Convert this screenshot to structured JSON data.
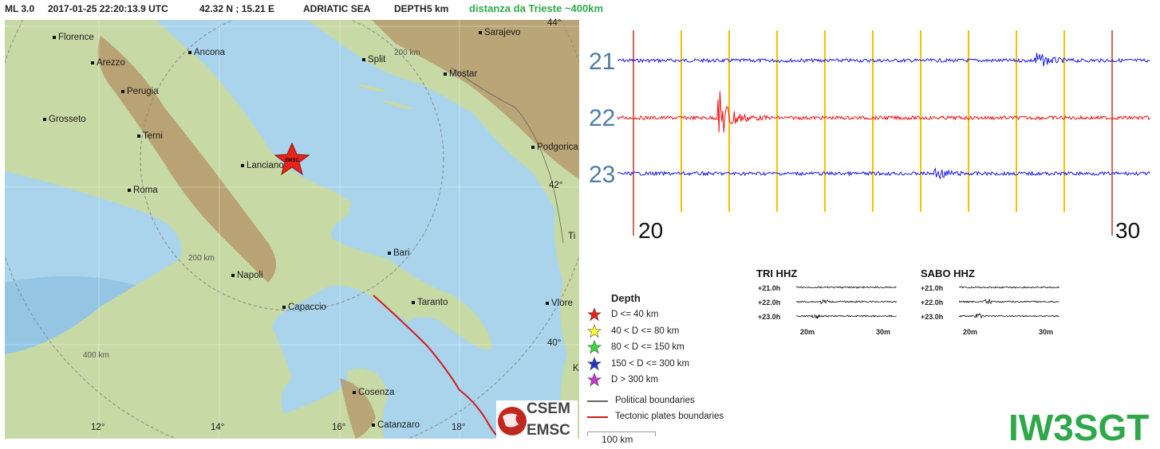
{
  "header": {
    "magnitude": "ML 3.0",
    "datetime": "2017-01-25 22:20:13.9 UTC",
    "coords": "42.32 N ; 15.21 E",
    "region": "ADRIATIC SEA",
    "depth_label": "DEPTH",
    "depth_value": "5 km",
    "distance_note": "distanza da Trieste ~400km"
  },
  "map": {
    "cities": [
      "Florence",
      "Arezzo",
      "Perugia",
      "Grosseto",
      "Terni",
      "Roma",
      "Ancona",
      "Lanciano",
      "Napoli",
      "Capaccio",
      "Bari",
      "Taranto",
      "Cosenza",
      "Catanzaro",
      "Split",
      "Mostar",
      "Sarajevo",
      "Podgorica",
      "Vlore",
      "Ti",
      "K"
    ],
    "lat_labels": [
      "44°",
      "42°",
      "40°"
    ],
    "lon_labels": [
      "12°",
      "14°",
      "16°",
      "18°"
    ],
    "distance_rings": [
      "200 km",
      "200 km",
      "400 km"
    ],
    "epicenter_label": "EMSC",
    "colors": {
      "sea": "#a9d4ec",
      "land": "#c7d9a5",
      "mountain": "#b48f63",
      "ring": "#8a8a8a",
      "tectonic": "#d21b1b"
    }
  },
  "legend": {
    "title": "Depth",
    "items": [
      {
        "label": "D <= 40 km",
        "color": "#e8231c"
      },
      {
        "label": "40 < D <= 80 km",
        "color": "#ffff33"
      },
      {
        "label": "80 < D <= 150 km",
        "color": "#33dd33"
      },
      {
        "label": "150 < D <= 300 km",
        "color": "#2233cc"
      },
      {
        "label": "D > 300 km",
        "color": "#cc33cc"
      }
    ],
    "political_label": "Political boundaries",
    "tectonic_label": "Tectonic plates boundaries",
    "scale_label": "100 km",
    "logo_top": "CSEM",
    "logo_bottom": "EMSC"
  },
  "seismogram": {
    "hours": [
      "21",
      "22",
      "23"
    ],
    "start_min": "20",
    "end_min": "30",
    "trace_colors": [
      "#1a1ae0",
      "#ee1111",
      "#1a1ae0"
    ],
    "marker_color": "#f2c200",
    "boundary_color": "#c0391f"
  },
  "stations": [
    {
      "name": "TRI HHZ",
      "rows": [
        "+21.0h",
        "+22.0h",
        "+23.0h"
      ],
      "start": "20m",
      "end": "30m"
    },
    {
      "name": "SABO HHZ",
      "rows": [
        "+21.0h",
        "+22.0h",
        "+23.0h"
      ],
      "start": "20m",
      "end": "30m"
    }
  ],
  "callsign": "IW3SGT"
}
